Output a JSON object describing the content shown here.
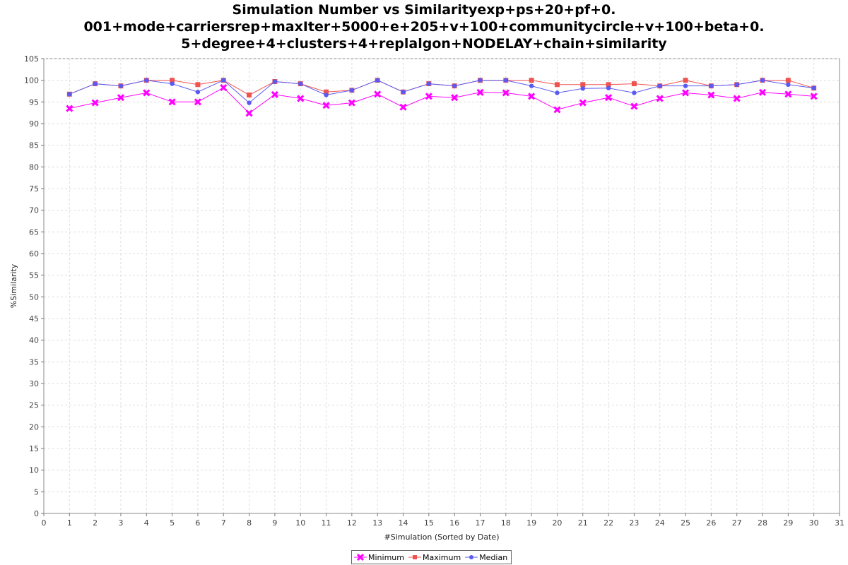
{
  "chart_data": {
    "type": "line",
    "title_lines": [
      "Simulation Number vs Similarityexp+ps+20+pf+0.",
      "001+mode+carriersrep+maxIter+5000+e+205+v+100+communitycircle+v+100+beta+0.",
      "5+degree+4+clusters+4+replalgon+NODELAY+chain+similarity"
    ],
    "xlabel": "#Simulation (Sorted by Date)",
    "ylabel": "%Similarity",
    "xlim": [
      0,
      31
    ],
    "ylim": [
      0,
      105
    ],
    "x_ticks": [
      0,
      1,
      2,
      3,
      4,
      5,
      6,
      7,
      8,
      9,
      10,
      11,
      12,
      13,
      14,
      15,
      16,
      17,
      18,
      19,
      20,
      21,
      22,
      23,
      24,
      25,
      26,
      27,
      28,
      29,
      30,
      31
    ],
    "y_ticks": [
      0,
      5,
      10,
      15,
      20,
      25,
      30,
      35,
      40,
      45,
      50,
      55,
      60,
      65,
      70,
      75,
      80,
      85,
      90,
      95,
      100,
      105
    ],
    "grid": true,
    "legend_position": "bottom",
    "x": [
      1,
      2,
      3,
      4,
      5,
      6,
      7,
      8,
      9,
      10,
      11,
      12,
      13,
      14,
      15,
      16,
      17,
      18,
      19,
      20,
      21,
      22,
      23,
      24,
      25,
      26,
      27,
      28,
      29,
      30
    ],
    "series": [
      {
        "name": "Minimum",
        "color": "#ff00ff",
        "marker": "x",
        "values": [
          93.5,
          94.8,
          96.0,
          97.1,
          95.0,
          95.0,
          98.3,
          92.4,
          96.7,
          95.8,
          94.2,
          94.8,
          96.8,
          93.8,
          96.3,
          96.0,
          97.2,
          97.1,
          96.3,
          93.2,
          94.8,
          96.0,
          94.0,
          95.8,
          97.1,
          96.6,
          95.8,
          97.2,
          96.8,
          96.3
        ]
      },
      {
        "name": "Maximum",
        "color": "#ef5350",
        "marker": "square",
        "values": [
          96.8,
          99.2,
          98.7,
          100.0,
          100.0,
          99.0,
          100.0,
          96.6,
          99.7,
          99.2,
          97.3,
          97.7,
          100.0,
          97.3,
          99.2,
          98.7,
          100.0,
          100.0,
          100.0,
          99.0,
          99.0,
          99.0,
          99.2,
          98.7,
          100.0,
          98.7,
          99.0,
          100.0,
          100.0,
          98.2
        ]
      },
      {
        "name": "Median",
        "color": "#5a5af0",
        "marker": "circle",
        "values": [
          96.8,
          99.2,
          98.7,
          100.0,
          99.2,
          97.3,
          100.0,
          94.8,
          99.7,
          99.2,
          96.6,
          97.7,
          100.0,
          97.3,
          99.2,
          98.7,
          100.0,
          100.0,
          98.7,
          97.1,
          98.1,
          98.2,
          97.1,
          98.7,
          98.7,
          98.7,
          99.0,
          100.0,
          99.0,
          98.2
        ]
      }
    ]
  }
}
